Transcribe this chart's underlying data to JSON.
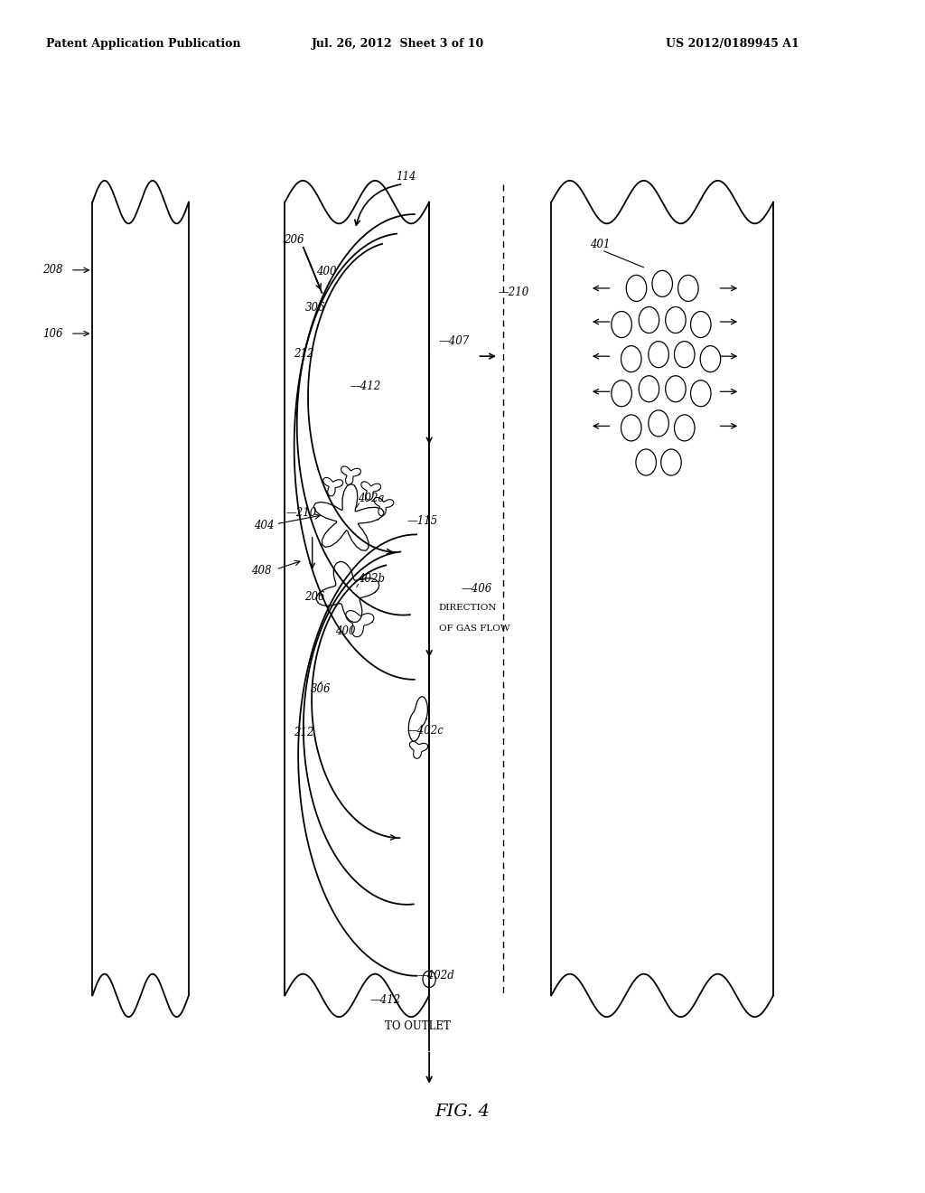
{
  "bg_color": "#ffffff",
  "header_left": "Patent Application Publication",
  "header_mid": "Jul. 26, 2012  Sheet 3 of 10",
  "header_right": "US 2012/0189945 A1",
  "fig_label": "FIG. 4"
}
